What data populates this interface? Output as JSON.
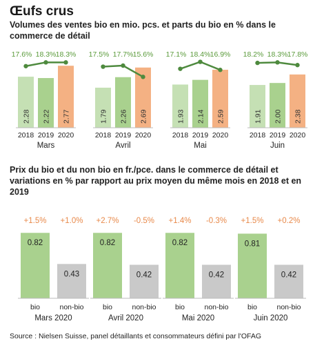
{
  "title": "Œufs crus",
  "chart1_title": "Volumes des ventes bio en mio. pcs. et parts du bio en % dans le commerce de détail",
  "chart2_title": "Prix du bio et du non bio en fr./pce. dans le commerce de détail et variations en % par rapport au prix moyen du même mois en 2018 et en 2019",
  "source": "Source : Nielsen Suisse, panel détaillants et consommateurs défini par l'OFAG",
  "colors": {
    "light_green": "#c5e0b4",
    "mid_green": "#a9d18e",
    "orange": "#f4b183",
    "line_green": "#4e8a3e",
    "share_text": "#5a9a3a",
    "bio_green": "#a9d18e",
    "nonbio_gray": "#c9c9c9",
    "change_text": "#e8894a"
  },
  "chart_data": [
    {
      "type": "bar",
      "subtype": "grouped bars with line overlay",
      "title": "Volumes des ventes bio en mio. pcs. et parts du bio en % dans le commerce de détail",
      "groups": [
        "Mars",
        "Avril",
        "Mai",
        "Juin"
      ],
      "categories": [
        "2018",
        "2019",
        "2020"
      ],
      "series": [
        {
          "values": [
            [
              2.28,
              2.22,
              2.77
            ],
            [
              1.79,
              2.26,
              2.69
            ],
            [
              1.93,
              2.14,
              2.59
            ],
            [
              1.91,
              2.0,
              2.38
            ]
          ]
        }
      ],
      "value_labels": [
        [
          "2.28",
          "2.22",
          "2.77"
        ],
        [
          "1.79",
          "2.26",
          "2.69"
        ],
        [
          "1.93",
          "2.14",
          "2.59"
        ],
        [
          "1.91",
          "2.00",
          "2.38"
        ]
      ],
      "line_values": [
        [
          17.6,
          18.3,
          18.3
        ],
        [
          17.5,
          17.7,
          15.6
        ],
        [
          17.1,
          18.4,
          16.9
        ],
        [
          18.2,
          18.3,
          17.8
        ]
      ],
      "line_labels": [
        [
          "17.6%",
          "18.3%",
          "18.3%"
        ],
        [
          "17.5%",
          "17.7%",
          "15.6%"
        ],
        [
          "17.1%",
          "18.4%",
          "16.9%"
        ],
        [
          "18.2%",
          "18.3%",
          "17.8%"
        ]
      ],
      "ylim": [
        0,
        2.9
      ]
    },
    {
      "type": "bar",
      "title": "Prix du bio et du non bio en fr./pce. dans le commerce de détail et variations en % par rapport au prix moyen du même mois en 2018 et en 2019",
      "groups": [
        "Mars 2020",
        "Avril 2020",
        "Mai 2020",
        "Juin 2020"
      ],
      "categories": [
        "bio",
        "non-bio"
      ],
      "values": [
        [
          0.82,
          0.43
        ],
        [
          0.82,
          0.42
        ],
        [
          0.82,
          0.42
        ],
        [
          0.81,
          0.42
        ]
      ],
      "value_labels": [
        [
          "0.82",
          "0.43"
        ],
        [
          "0.82",
          "0.42"
        ],
        [
          "0.82",
          "0.42"
        ],
        [
          "0.81",
          "0.42"
        ]
      ],
      "change_labels": [
        [
          "+1.5%",
          "+1.0%"
        ],
        [
          "+2.7%",
          "-0.5%"
        ],
        [
          "+1.4%",
          "-0.3%"
        ],
        [
          "+1.5%",
          "+0.2%"
        ]
      ],
      "ylim": [
        0,
        0.9
      ]
    }
  ]
}
